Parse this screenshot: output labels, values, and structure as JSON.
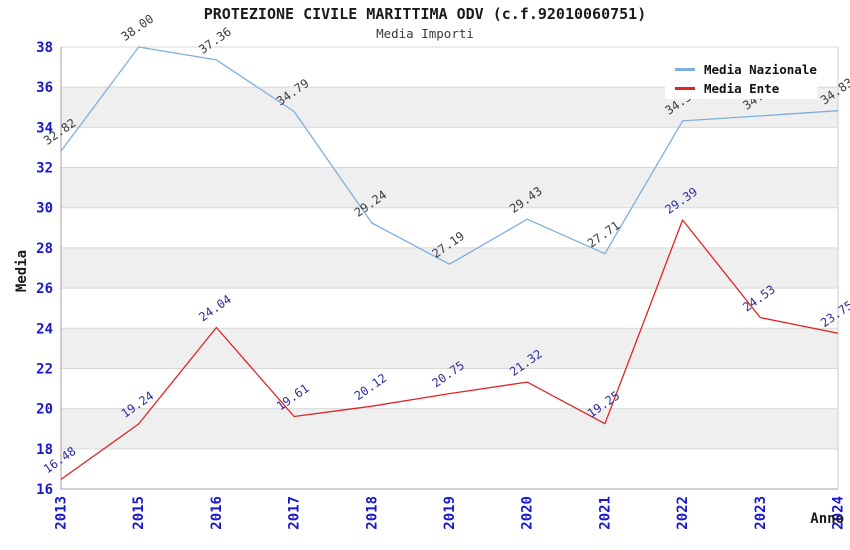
{
  "title": "PROTEZIONE CIVILE MARITTIMA ODV (c.f.92010060751)",
  "subtitle": "Media Importi",
  "axes": {
    "x_title": "Anno",
    "y_title": "Media",
    "tick_color": "#1717cc",
    "y_ticks": [
      16,
      18,
      20,
      22,
      24,
      26,
      28,
      30,
      32,
      34,
      36,
      38
    ]
  },
  "legend": {
    "items": [
      {
        "label": "Media Nazionale",
        "color": "#7cafdf"
      },
      {
        "label": "Media Ente",
        "color": "#e02424"
      }
    ]
  },
  "chart_data": {
    "type": "line",
    "title": "PROTEZIONE CIVILE MARITTIMA ODV (c.f.92010060751)",
    "subtitle": "Media Importi",
    "xlabel": "Anno",
    "ylabel": "Media",
    "categories": [
      "2013",
      "2015",
      "2016",
      "2017",
      "2018",
      "2019",
      "2020",
      "2021",
      "2022",
      "2023",
      "2024"
    ],
    "series": [
      {
        "name": "Media Nazionale",
        "color": "#7cafdf",
        "label_color": "#3c3c3c",
        "values": [
          32.82,
          38.0,
          37.36,
          34.79,
          29.24,
          27.19,
          29.43,
          27.71,
          34.32,
          34.57,
          34.83
        ]
      },
      {
        "name": "Media Ente",
        "color": "#e02424",
        "label_color": "#2f2f99",
        "values": [
          16.48,
          19.24,
          24.04,
          19.61,
          20.12,
          20.75,
          21.32,
          19.25,
          29.39,
          24.53,
          23.75
        ]
      }
    ],
    "ylim": [
      16,
      38
    ],
    "ytick_step": 2,
    "grid": true,
    "band_fill": "#efefef",
    "grid_color": "#d9d9d9",
    "axis_color": "#a0a0a0",
    "legend_position": "top-right",
    "note": "2023 Media Nazionale label partially hidden behind legend box"
  }
}
